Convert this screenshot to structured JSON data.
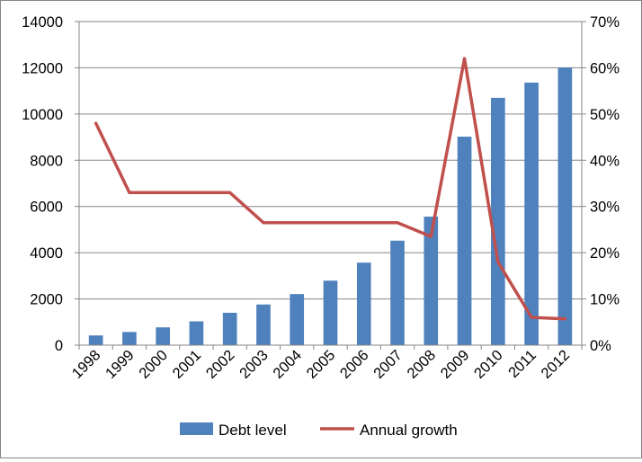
{
  "chart_data": {
    "type": "bar+line",
    "title": "",
    "categories": [
      "1998",
      "1999",
      "2000",
      "2001",
      "2002",
      "2003",
      "2004",
      "2005",
      "2006",
      "2007",
      "2008",
      "2009",
      "2010",
      "2011",
      "2012"
    ],
    "series": [
      {
        "name": "Debt level",
        "type": "bar",
        "axis": "left",
        "color": "#4F81BD",
        "values": [
          420,
          570,
          770,
          1030,
          1400,
          1760,
          2210,
          2790,
          3570,
          4520,
          5560,
          9020,
          10700,
          11360,
          12010
        ]
      },
      {
        "name": "Annual growth",
        "type": "line",
        "axis": "right",
        "color": "#C0504D",
        "values": [
          0.48,
          0.33,
          0.33,
          0.33,
          0.33,
          0.265,
          0.265,
          0.265,
          0.265,
          0.265,
          0.235,
          0.62,
          0.18,
          0.06,
          0.057
        ]
      }
    ],
    "y_left": {
      "min": 0,
      "max": 14000,
      "ticks": [
        0,
        2000,
        4000,
        6000,
        8000,
        10000,
        12000,
        14000
      ],
      "tick_labels": [
        "0",
        "2000",
        "4000",
        "6000",
        "8000",
        "10000",
        "12000",
        "14000"
      ]
    },
    "y_right": {
      "min": 0,
      "max": 0.7,
      "ticks": [
        0,
        0.1,
        0.2,
        0.3,
        0.4,
        0.5,
        0.6,
        0.7
      ],
      "tick_labels": [
        "0%",
        "10%",
        "20%",
        "30%",
        "40%",
        "50%",
        "60%",
        "70%"
      ]
    },
    "grid": true,
    "legend_position": "bottom",
    "xlabel": "",
    "ylabel": ""
  }
}
